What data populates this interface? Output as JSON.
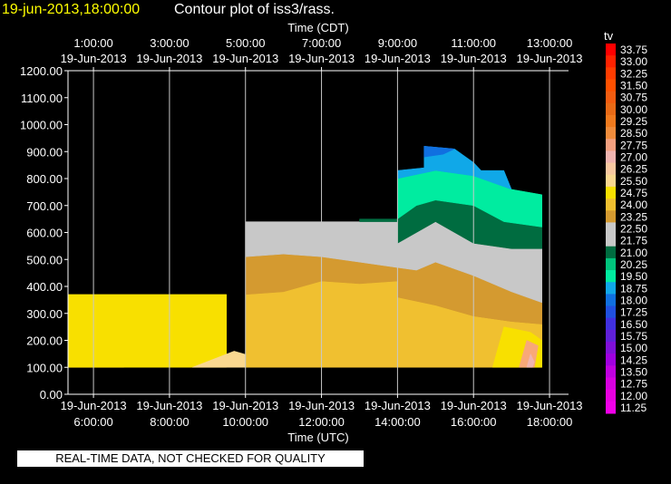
{
  "header": {
    "timestamp": "19-jun-2013,18:00:00",
    "title": "Contour plot of iss3/rass."
  },
  "footer": {
    "qc_note": "REAL-TIME DATA, NOT CHECKED FOR QUALITY"
  },
  "chart_data": {
    "type": "heatmap",
    "colorbar_label": "tv",
    "top_xlabel": "Time (CDT)",
    "bottom_xlabel": "Time (UTC)",
    "xlim_utc_hours": [
      5.33,
      18.5
    ],
    "ylim": [
      0,
      1200
    ],
    "yticks": [
      "0.00",
      "100.00",
      "200.00",
      "300.00",
      "400.00",
      "500.00",
      "600.00",
      "700.00",
      "800.00",
      "900.00",
      "1000.00",
      "1100.00",
      "1200.00"
    ],
    "top_ticks": [
      {
        "time": "1:00:00",
        "date": "19-Jun-2013",
        "utc_hour": 6
      },
      {
        "time": "3:00:00",
        "date": "19-Jun-2013",
        "utc_hour": 8
      },
      {
        "time": "5:00:00",
        "date": "19-Jun-2013",
        "utc_hour": 10
      },
      {
        "time": "7:00:00",
        "date": "19-Jun-2013",
        "utc_hour": 12
      },
      {
        "time": "9:00:00",
        "date": "19-Jun-2013",
        "utc_hour": 14
      },
      {
        "time": "11:00:00",
        "date": "19-Jun-2013",
        "utc_hour": 16
      },
      {
        "time": "13:00:00",
        "date": "19-Jun-2013",
        "utc_hour": 18
      }
    ],
    "bottom_ticks": [
      {
        "date": "19-Jun-2013",
        "time": "6:00:00",
        "utc_hour": 6
      },
      {
        "date": "19-Jun-2013",
        "time": "8:00:00",
        "utc_hour": 8
      },
      {
        "date": "19-Jun-2013",
        "time": "10:00:00",
        "utc_hour": 10
      },
      {
        "date": "19-Jun-2013",
        "time": "12:00:00",
        "utc_hour": 12
      },
      {
        "date": "19-Jun-2013",
        "time": "14:00:00",
        "utc_hour": 14
      },
      {
        "date": "19-Jun-2013",
        "time": "16:00:00",
        "utc_hour": 16
      },
      {
        "date": "19-Jun-2013",
        "time": "18:00:00",
        "utc_hour": 18
      }
    ],
    "grid": true,
    "colorbar": {
      "position": "right",
      "levels": [
        "33.75",
        "33.00",
        "32.25",
        "31.50",
        "30.75",
        "30.00",
        "29.25",
        "28.50",
        "27.75",
        "27.00",
        "26.25",
        "25.50",
        "24.75",
        "24.00",
        "23.25",
        "22.50",
        "21.75",
        "21.00",
        "20.25",
        "19.50",
        "18.75",
        "18.00",
        "17.25",
        "16.50",
        "15.75",
        "15.00",
        "14.25",
        "13.50",
        "12.75",
        "12.00",
        "11.25"
      ],
      "colors": [
        "#ff0000",
        "#ff2200",
        "#ff3c00",
        "#ff5000",
        "#f25c10",
        "#e86a16",
        "#f07a1e",
        "#f08c3c",
        "#f4a080",
        "#f0b4b0",
        "#f8c8a0",
        "#fad890",
        "#f8e000",
        "#f0c030",
        "#d49a30",
        "#c8c8c8",
        "#c8c8c8",
        "#006c40",
        "#00c47c",
        "#00eca0",
        "#10a8e8",
        "#1070e0",
        "#2050e0",
        "#4030e0",
        "#6020d8",
        "#8010d8",
        "#a000e0",
        "#c000e0",
        "#d800e0",
        "#e800e0",
        "#f000e8"
      ]
    },
    "series": [
      {
        "name": "26.25",
        "color": "#f8a878",
        "points": [
          [
            5.33,
            100
          ],
          [
            5.4,
            160
          ],
          [
            5.9,
            170
          ],
          [
            6.2,
            110
          ],
          [
            6.8,
            100
          ],
          [
            5.33,
            100
          ]
        ]
      },
      {
        "name": "24.75",
        "color": "#f8e000",
        "points": [
          [
            5.33,
            100
          ],
          [
            5.33,
            370
          ],
          [
            9.5,
            370
          ],
          [
            9.5,
            100
          ]
        ]
      },
      {
        "name": "25.50",
        "color": "#fad890",
        "points": [
          [
            8.6,
            100
          ],
          [
            9.7,
            160
          ],
          [
            10.2,
            140
          ],
          [
            10.0,
            100
          ]
        ]
      },
      {
        "name": "24.00",
        "color": "#f0c030",
        "points": [
          [
            10.0,
            100
          ],
          [
            10.0,
            510
          ],
          [
            14.0,
            510
          ],
          [
            14.0,
            100
          ]
        ]
      },
      {
        "name": "23.25",
        "color": "#d49a30",
        "points": [
          [
            10.0,
            370
          ],
          [
            10.0,
            510
          ],
          [
            11.0,
            520
          ],
          [
            12.0,
            510
          ],
          [
            13.0,
            490
          ],
          [
            14.0,
            470
          ],
          [
            14.0,
            420
          ],
          [
            13.0,
            410
          ],
          [
            12.0,
            420
          ],
          [
            11.0,
            380
          ],
          [
            10.0,
            370
          ]
        ]
      },
      {
        "name": "22.50",
        "color": "#c8c8c8",
        "points": [
          [
            10.0,
            510
          ],
          [
            10.0,
            640
          ],
          [
            14.0,
            640
          ],
          [
            14.0,
            470
          ],
          [
            13.0,
            490
          ],
          [
            12.0,
            510
          ],
          [
            11.0,
            520
          ],
          [
            10.0,
            510
          ]
        ]
      },
      {
        "name": "24.00",
        "color": "#f0c030",
        "points": [
          [
            14.0,
            100
          ],
          [
            14.0,
            360
          ],
          [
            15.0,
            330
          ],
          [
            16.0,
            290
          ],
          [
            17.0,
            270
          ],
          [
            17.8,
            260
          ],
          [
            17.8,
            100
          ]
        ]
      },
      {
        "name": "23.25",
        "color": "#d49a30",
        "points": [
          [
            14.0,
            360
          ],
          [
            14.0,
            470
          ],
          [
            14.5,
            460
          ],
          [
            15.0,
            490
          ],
          [
            16.0,
            440
          ],
          [
            17.0,
            380
          ],
          [
            17.8,
            340
          ],
          [
            17.8,
            260
          ],
          [
            17.0,
            270
          ],
          [
            16.0,
            290
          ],
          [
            15.0,
            330
          ],
          [
            14.0,
            360
          ]
        ]
      },
      {
        "name": "22.50",
        "color": "#c8c8c8",
        "points": [
          [
            14.0,
            470
          ],
          [
            14.0,
            560
          ],
          [
            15.0,
            640
          ],
          [
            16.0,
            560
          ],
          [
            17.0,
            540
          ],
          [
            17.8,
            540
          ],
          [
            17.8,
            340
          ],
          [
            17.0,
            380
          ],
          [
            16.0,
            440
          ],
          [
            15.0,
            490
          ],
          [
            14.5,
            460
          ],
          [
            14.0,
            470
          ]
        ]
      },
      {
        "name": "21.75",
        "color": "#006c40",
        "points": [
          [
            13.0,
            640
          ],
          [
            13.0,
            650
          ],
          [
            14.0,
            650
          ],
          [
            14.5,
            700
          ],
          [
            15.0,
            720
          ],
          [
            16.0,
            700
          ],
          [
            16.8,
            640
          ],
          [
            17.8,
            620
          ],
          [
            17.8,
            540
          ],
          [
            17.0,
            540
          ],
          [
            16.0,
            560
          ],
          [
            15.0,
            640
          ],
          [
            14.0,
            560
          ],
          [
            14.0,
            640
          ],
          [
            13.0,
            640
          ]
        ]
      },
      {
        "name": "20.25",
        "color": "#00eca0",
        "points": [
          [
            14.0,
            650
          ],
          [
            14.0,
            800
          ],
          [
            15.0,
            830
          ],
          [
            16.0,
            810
          ],
          [
            17.0,
            760
          ],
          [
            17.8,
            740
          ],
          [
            17.8,
            620
          ],
          [
            16.8,
            640
          ],
          [
            16.0,
            700
          ],
          [
            15.0,
            720
          ],
          [
            14.5,
            700
          ],
          [
            14.0,
            650
          ]
        ]
      },
      {
        "name": "19.50",
        "color": "#10a8e8",
        "points": [
          [
            14.0,
            800
          ],
          [
            14.0,
            830
          ],
          [
            14.7,
            840
          ],
          [
            14.7,
            920
          ],
          [
            15.5,
            910
          ],
          [
            16.0,
            860
          ],
          [
            16.2,
            830
          ],
          [
            16.8,
            830
          ],
          [
            17.0,
            760
          ],
          [
            16.0,
            810
          ],
          [
            15.0,
            830
          ],
          [
            14.0,
            800
          ]
        ]
      },
      {
        "name": "18.75",
        "color": "#1070e0",
        "points": [
          [
            14.7,
            880
          ],
          [
            14.7,
            920
          ],
          [
            15.5,
            910
          ],
          [
            15.2,
            890
          ],
          [
            14.7,
            880
          ]
        ]
      },
      {
        "name": "24.75",
        "color": "#f8e000",
        "points": [
          [
            16.5,
            100
          ],
          [
            16.8,
            250
          ],
          [
            17.5,
            230
          ],
          [
            17.8,
            200
          ],
          [
            17.8,
            100
          ]
        ]
      },
      {
        "name": "26.25",
        "color": "#f8a878",
        "points": [
          [
            17.2,
            100
          ],
          [
            17.4,
            200
          ],
          [
            17.7,
            180
          ],
          [
            17.6,
            100
          ]
        ]
      },
      {
        "name": "27.00",
        "color": "#f0b4b0",
        "points": [
          [
            17.4,
            100
          ],
          [
            17.5,
            150
          ],
          [
            17.6,
            120
          ],
          [
            17.55,
            100
          ]
        ]
      }
    ]
  }
}
